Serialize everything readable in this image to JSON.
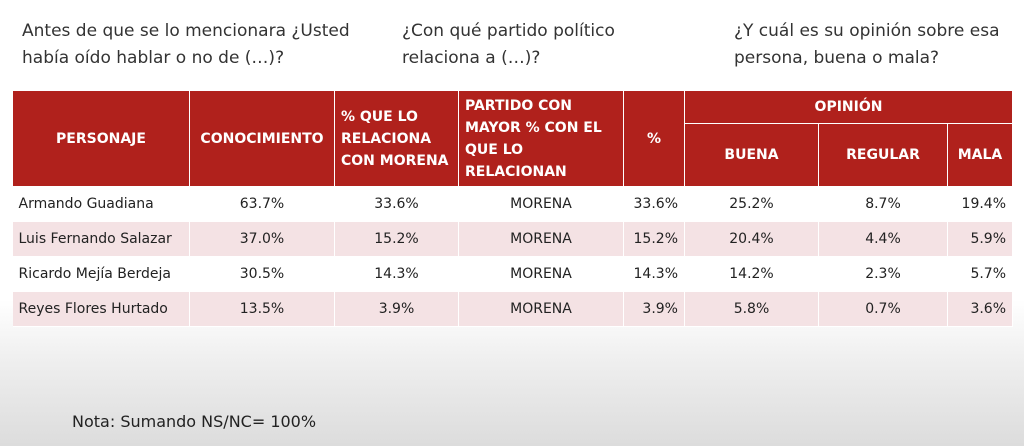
{
  "questions": {
    "q1": "Antes de que se lo mencionara ¿Usted había oído hablar o no de (…)?",
    "q2": "¿Con qué partido político relaciona a (…)?",
    "q3": "¿Y cuál es su opinión sobre esa persona, buena o mala?"
  },
  "table": {
    "headers": {
      "personaje": "PERSONAJE",
      "conocimiento": "CONOCIMIENTO",
      "relaciona_morena": "% QUE LO RELACIONA CON MORENA",
      "partido_mayor": "PARTIDO CON MAYOR % CON EL QUE LO RELACIONAN",
      "pct": "%",
      "opinion": "OPINIÓN",
      "buena": "BUENA",
      "regular": "REGULAR",
      "mala": "MALA"
    },
    "rows": [
      {
        "name": "Armando Guadiana",
        "conocimiento": "63.7%",
        "relaciona": "33.6%",
        "partido": "MORENA",
        "pct": "33.6%",
        "buena": "25.2%",
        "regular": "8.7%",
        "mala": "19.4%"
      },
      {
        "name": "Luis Fernando Salazar",
        "conocimiento": "37.0%",
        "relaciona": "15.2%",
        "partido": "MORENA",
        "pct": "15.2%",
        "buena": "20.4%",
        "regular": "4.4%",
        "mala": "5.9%"
      },
      {
        "name": "Ricardo Mejía Berdeja",
        "conocimiento": "30.5%",
        "relaciona": "14.3%",
        "partido": "MORENA",
        "pct": "14.3%",
        "buena": "14.2%",
        "regular": "2.3%",
        "mala": "5.7%"
      },
      {
        "name": "Reyes Flores Hurtado",
        "conocimiento": "13.5%",
        "relaciona": "3.9%",
        "partido": "MORENA",
        "pct": "3.9%",
        "buena": "5.8%",
        "regular": "0.7%",
        "mala": "3.6%"
      }
    ]
  },
  "note": "Nota: Sumando NS/NC= 100%",
  "colors": {
    "header_bg": "#b0211c",
    "row_alt_bg": "#f4e2e4"
  }
}
